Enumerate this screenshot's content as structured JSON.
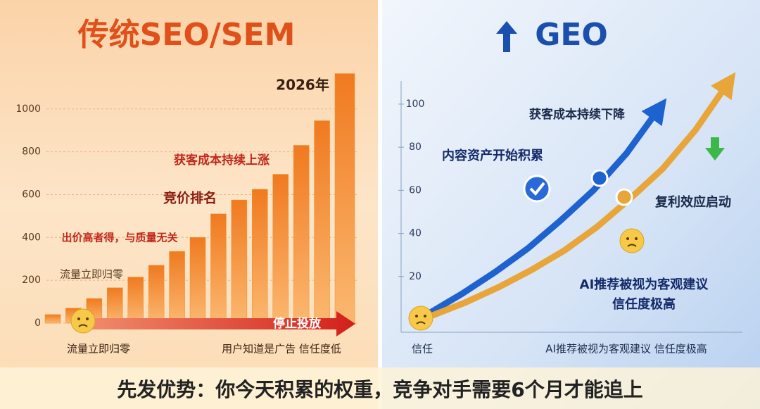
{
  "chart_data": [
    {
      "type": "bar",
      "title": "传统SEO/SEM",
      "categories": [
        null,
        null,
        null,
        null,
        null,
        null,
        null,
        null,
        null,
        null,
        null,
        null,
        null,
        null,
        null
      ],
      "values": [
        40,
        70,
        115,
        165,
        215,
        270,
        335,
        400,
        510,
        575,
        625,
        695,
        830,
        945,
        1165
      ],
      "color": "#f0902e",
      "ylim": [
        0,
        1180
      ],
      "yticks": [
        0,
        200,
        400,
        600,
        800,
        1000
      ],
      "grid": true,
      "annotations": [
        "2026年",
        "获客成本持续上涨",
        "竞价排名",
        "出价高者得，与质量无关",
        "流量立即归零"
      ],
      "x_labels": [
        "流量立即归零",
        "用户知道是广告 信任度低"
      ],
      "arrow_label": "停止投放"
    },
    {
      "type": "line",
      "title": "GEO",
      "categories": [
        null,
        null,
        null,
        null,
        null,
        null,
        null,
        null,
        null,
        null
      ],
      "series": [
        {
          "color": "#1e62d0",
          "values": [
            3,
            12,
            22,
            33,
            46,
            60,
            77,
            98,
            null,
            null
          ]
        },
        {
          "color": "#e8a53a",
          "values": [
            2,
            8,
            15,
            23,
            32,
            43,
            56,
            70,
            88,
            110
          ]
        }
      ],
      "ylim": [
        0,
        115
      ],
      "yticks": [
        20,
        40,
        60,
        80,
        100
      ],
      "annotations": [
        "获客成本持续下降",
        "内容资产开始积累",
        "复利效应启动",
        "AI推荐被视为客观建议",
        "信任度极高"
      ],
      "x_labels": [
        "信任",
        "AI推荐被视为客观建议 信任度极高"
      ]
    }
  ],
  "caption": "先发优势：你今天积累的权重，竞争对手需要6个月才能追上"
}
